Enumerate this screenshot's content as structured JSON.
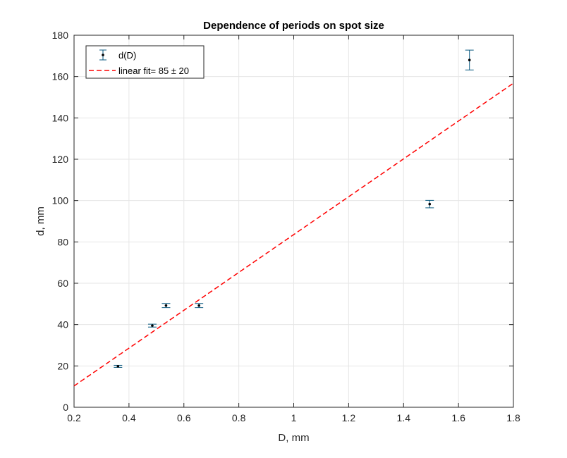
{
  "chart_data": {
    "type": "scatter",
    "title": "Dependence of periods on spot size",
    "xlabel": "D, mm",
    "ylabel": "d, mm",
    "xlim": [
      0.2,
      1.8
    ],
    "ylim": [
      0,
      180
    ],
    "xticks": [
      0.2,
      0.4,
      0.6,
      0.8,
      1,
      1.2,
      1.4,
      1.6,
      1.8
    ],
    "yticks": [
      0,
      20,
      40,
      60,
      80,
      100,
      120,
      140,
      160,
      180
    ],
    "grid": true,
    "legend_position": "top-left",
    "series": [
      {
        "name": "d(D)",
        "kind": "errorbar",
        "color": "#0a5a80",
        "marker_color": "#000000",
        "points": [
          {
            "x": 0.36,
            "y": 19.8,
            "err": 0.5
          },
          {
            "x": 0.485,
            "y": 39.5,
            "err": 0.7
          },
          {
            "x": 0.535,
            "y": 49.2,
            "err": 1.0
          },
          {
            "x": 0.655,
            "y": 49.2,
            "err": 1.0
          },
          {
            "x": 1.495,
            "y": 98.3,
            "err": 1.8
          },
          {
            "x": 1.64,
            "y": 168,
            "err": 4.8
          }
        ]
      },
      {
        "name": "linear fit= 85 ± 20",
        "kind": "line",
        "style": "dashed",
        "color": "#ff0000",
        "points": [
          {
            "x": 0.2,
            "y": 10.3
          },
          {
            "x": 1.8,
            "y": 156.8
          }
        ]
      }
    ]
  }
}
